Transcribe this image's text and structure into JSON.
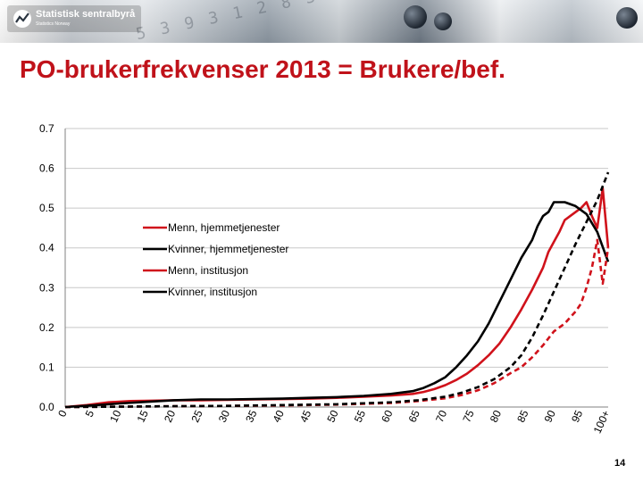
{
  "header": {
    "logo_name": "Statistisk sentralbyrå",
    "logo_sub": "Statistics Norway"
  },
  "slide": {
    "title": "PO-brukerfrekvenser 2013 = Brukere/bef.",
    "page_number": "14"
  },
  "chart_data": {
    "type": "line",
    "title": "",
    "xlabel": "",
    "ylabel": "",
    "ylim": [
      0,
      0.7
    ],
    "y_ticks": [
      "0.0",
      "0.1",
      "0.2",
      "0.3",
      "0.4",
      "0.5",
      "0.6",
      "0.7"
    ],
    "xlim": [
      0,
      100
    ],
    "x_ticks": [
      "0",
      "5",
      "10",
      "15",
      "20",
      "25",
      "30",
      "35",
      "40",
      "45",
      "50",
      "55",
      "60",
      "65",
      "70",
      "75",
      "80",
      "85",
      "90",
      "95",
      "100+"
    ],
    "grid": "horizontal",
    "legend_position": "inside-left",
    "series": [
      {
        "name": "Menn, hjemmetjenester",
        "color": "#d0121b",
        "style": "solid",
        "x": [
          0,
          4,
          8,
          12,
          16,
          20,
          25,
          30,
          35,
          40,
          45,
          50,
          55,
          60,
          64,
          66,
          68,
          70,
          72,
          74,
          76,
          78,
          80,
          82,
          84,
          86,
          88,
          89,
          90,
          91,
          92,
          93,
          94,
          95,
          96,
          97,
          98,
          99,
          100
        ],
        "y": [
          0.0,
          0.005,
          0.012,
          0.015,
          0.016,
          0.017,
          0.017,
          0.018,
          0.019,
          0.02,
          0.021,
          0.023,
          0.026,
          0.029,
          0.033,
          0.038,
          0.045,
          0.055,
          0.068,
          0.084,
          0.105,
          0.13,
          0.16,
          0.2,
          0.245,
          0.295,
          0.35,
          0.39,
          0.415,
          0.44,
          0.47,
          0.48,
          0.49,
          0.5,
          0.515,
          0.48,
          0.45,
          0.55,
          0.4
        ]
      },
      {
        "name": "Kvinner, hjemmetjenester",
        "color": "#000000",
        "style": "solid",
        "x": [
          0,
          5,
          10,
          15,
          20,
          25,
          30,
          35,
          40,
          45,
          50,
          55,
          60,
          64,
          66,
          68,
          70,
          72,
          74,
          76,
          78,
          80,
          82,
          84,
          86,
          87,
          88,
          89,
          90,
          92,
          94,
          96,
          98,
          100
        ],
        "y": [
          0.0,
          0.004,
          0.009,
          0.013,
          0.017,
          0.019,
          0.019,
          0.02,
          0.021,
          0.023,
          0.025,
          0.028,
          0.033,
          0.04,
          0.048,
          0.06,
          0.075,
          0.1,
          0.13,
          0.165,
          0.21,
          0.265,
          0.32,
          0.375,
          0.42,
          0.455,
          0.48,
          0.49,
          0.515,
          0.515,
          0.505,
          0.485,
          0.44,
          0.365
        ]
      },
      {
        "name": "Menn, institusjon",
        "color": "#d0121b",
        "style": "dashed",
        "x": [
          0,
          10,
          20,
          30,
          40,
          50,
          60,
          65,
          70,
          73,
          76,
          79,
          82,
          84,
          86,
          88,
          90,
          92,
          93,
          94,
          95,
          96,
          97,
          98,
          99,
          100
        ],
        "y": [
          0.0,
          0.001,
          0.002,
          0.003,
          0.004,
          0.006,
          0.01,
          0.015,
          0.022,
          0.03,
          0.042,
          0.06,
          0.085,
          0.1,
          0.125,
          0.155,
          0.19,
          0.21,
          0.225,
          0.24,
          0.26,
          0.3,
          0.35,
          0.42,
          0.31,
          0.4
        ]
      },
      {
        "name": "Kvinner, institusjon",
        "color": "#000000",
        "style": "dashed",
        "x": [
          0,
          10,
          20,
          30,
          40,
          50,
          60,
          65,
          70,
          73,
          76,
          79,
          82,
          84,
          86,
          88,
          90,
          92,
          94,
          96,
          98,
          100
        ],
        "y": [
          0.0,
          0.001,
          0.002,
          0.003,
          0.005,
          0.007,
          0.012,
          0.017,
          0.026,
          0.036,
          0.05,
          0.07,
          0.1,
          0.13,
          0.175,
          0.23,
          0.29,
          0.35,
          0.41,
          0.465,
          0.52,
          0.59
        ]
      }
    ]
  }
}
